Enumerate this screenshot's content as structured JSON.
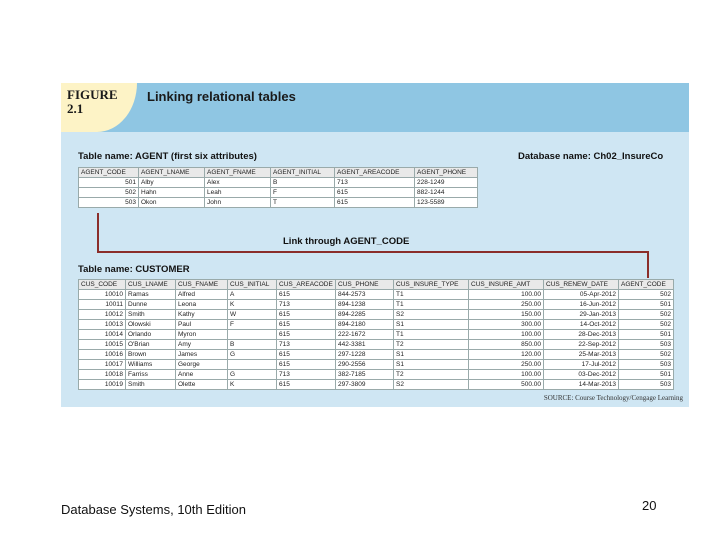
{
  "figure": {
    "label_line1": "FIGURE",
    "label_line2": "2.1",
    "title": "Linking relational tables"
  },
  "agent": {
    "caption": "Table name: AGENT (first six attributes)",
    "db_caption": "Database name: Ch02_InsureCo",
    "headers": [
      "AGENT_CODE",
      "AGENT_LNAME",
      "AGENT_FNAME",
      "AGENT_INITIAL",
      "AGENT_AREACODE",
      "AGENT_PHONE"
    ],
    "rows": [
      [
        "501",
        "Alby",
        "Alex",
        "B",
        "713",
        "228-1249"
      ],
      [
        "502",
        "Hahn",
        "Leah",
        "F",
        "615",
        "882-1244"
      ],
      [
        "503",
        "Okon",
        "John",
        "T",
        "615",
        "123-5589"
      ]
    ]
  },
  "link_label": "Link through AGENT_CODE",
  "customer": {
    "caption": "Table name: CUSTOMER",
    "headers": [
      "CUS_CODE",
      "CUS_LNAME",
      "CUS_FNAME",
      "CUS_INITIAL",
      "CUS_AREACODE",
      "CUS_PHONE",
      "CUS_INSURE_TYPE",
      "CUS_INSURE_AMT",
      "CUS_RENEW_DATE",
      "AGENT_CODE"
    ],
    "rows": [
      [
        "10010",
        "Ramas",
        "Alfred",
        "A",
        "615",
        "844-2573",
        "T1",
        "100.00",
        "05-Apr-2012",
        "502"
      ],
      [
        "10011",
        "Dunne",
        "Leona",
        "K",
        "713",
        "894-1238",
        "T1",
        "250.00",
        "16-Jun-2012",
        "501"
      ],
      [
        "10012",
        "Smith",
        "Kathy",
        "W",
        "615",
        "894-2285",
        "S2",
        "150.00",
        "29-Jan-2013",
        "502"
      ],
      [
        "10013",
        "Olowski",
        "Paul",
        "F",
        "615",
        "894-2180",
        "S1",
        "300.00",
        "14-Oct-2012",
        "502"
      ],
      [
        "10014",
        "Orlando",
        "Myron",
        "",
        "615",
        "222-1672",
        "T1",
        "100.00",
        "28-Dec-2013",
        "501"
      ],
      [
        "10015",
        "O'Brian",
        "Amy",
        "B",
        "713",
        "442-3381",
        "T2",
        "850.00",
        "22-Sep-2012",
        "503"
      ],
      [
        "10016",
        "Brown",
        "James",
        "G",
        "615",
        "297-1228",
        "S1",
        "120.00",
        "25-Mar-2013",
        "502"
      ],
      [
        "10017",
        "Williams",
        "George",
        "",
        "615",
        "290-2556",
        "S1",
        "250.00",
        "17-Jul-2012",
        "503"
      ],
      [
        "10018",
        "Farriss",
        "Anne",
        "G",
        "713",
        "382-7185",
        "T2",
        "100.00",
        "03-Dec-2012",
        "501"
      ],
      [
        "10019",
        "Smith",
        "Olette",
        "K",
        "615",
        "297-3809",
        "S2",
        "500.00",
        "14-Mar-2013",
        "503"
      ]
    ]
  },
  "source": "SOURCE: Course Technology/Cengage Learning",
  "footer": {
    "book": "Database Systems, 10th Edition",
    "page": "20"
  }
}
